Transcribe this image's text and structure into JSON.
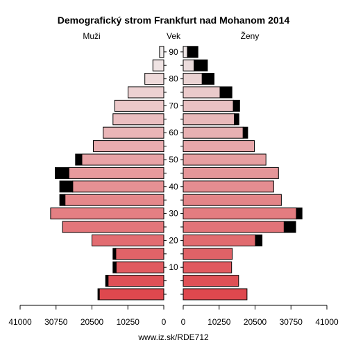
{
  "chart_data": {
    "type": "bar",
    "title": "Demografický strom Frankfurt nad Mohanom 2014",
    "left_label": "Muži",
    "center_label": "Vek",
    "right_label": "Ženy",
    "source": "www.iz.sk/RDE712",
    "age_ticks": [
      10,
      20,
      30,
      40,
      50,
      60,
      70,
      80,
      90
    ],
    "x_ticks_left": [
      "41000",
      "30750",
      "20500",
      "10250",
      "0"
    ],
    "x_ticks_right": [
      "0",
      "10250",
      "20500",
      "30750",
      "41000"
    ],
    "xlim": [
      0,
      41000
    ],
    "age_groups": [
      "0-4",
      "5-9",
      "10-14",
      "15-19",
      "20-24",
      "25-29",
      "30-34",
      "35-39",
      "40-44",
      "45-49",
      "50-54",
      "55-59",
      "60-64",
      "65-69",
      "70-74",
      "75-79",
      "80-84",
      "85-89",
      "90+"
    ],
    "series": [
      {
        "name": "Muži",
        "values": [
          18400,
          15900,
          13600,
          13700,
          20500,
          28900,
          32300,
          28200,
          26000,
          27100,
          23400,
          20100,
          17300,
          14500,
          14000,
          10200,
          5400,
          3100,
          1200
        ]
      },
      {
        "name": "Muži (prebytok)",
        "values": [
          400,
          700,
          900,
          800,
          0,
          0,
          0,
          1500,
          3700,
          3900,
          1800,
          0,
          0,
          0,
          0,
          0,
          0,
          0,
          0
        ]
      },
      {
        "name": "Ženy",
        "values": [
          18200,
          15800,
          13800,
          14000,
          20600,
          28800,
          32300,
          28000,
          25800,
          27200,
          23600,
          20300,
          17100,
          14600,
          14300,
          10500,
          5400,
          3100,
          1200
        ]
      },
      {
        "name": "Ženy (prebytok)",
        "values": [
          0,
          0,
          0,
          0,
          1900,
          3300,
          1600,
          0,
          0,
          0,
          0,
          0,
          1300,
          1300,
          1800,
          3400,
          3400,
          3800,
          3000
        ]
      }
    ]
  }
}
